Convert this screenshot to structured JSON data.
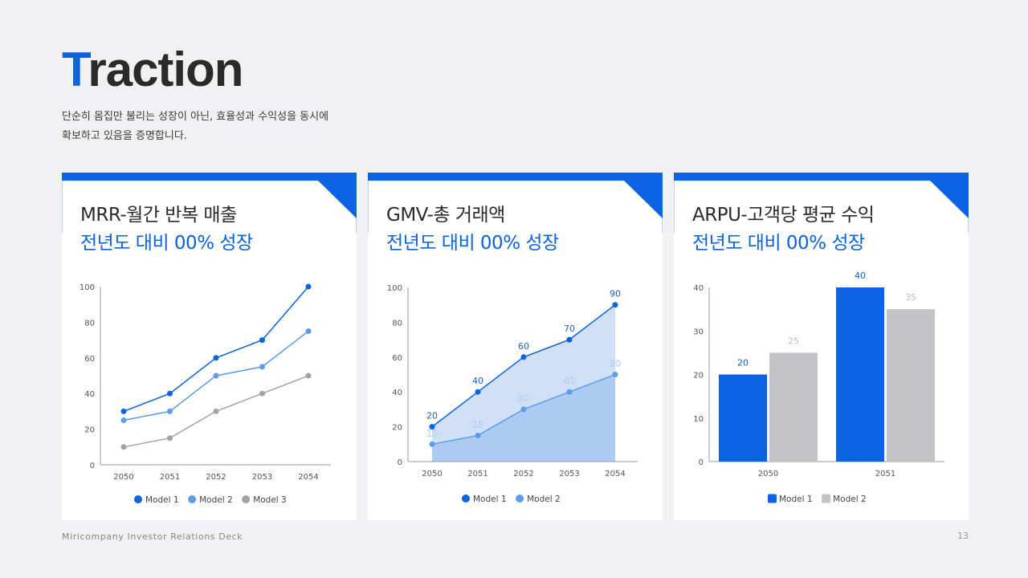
{
  "header": {
    "title_accent": "T",
    "title_rest": "raction",
    "subtitle_line1": "단순히 몸집만 불리는 성장이 아닌, 효율성과 수익성을 동시에",
    "subtitle_line2": "확보하고 있음을 증명합니다."
  },
  "cards": [
    {
      "title": "MRR-월간 반복 매출",
      "growth": "전년도 대비 00% 성장"
    },
    {
      "title": "GMV-총 거래액",
      "growth": "전년도 대비 00% 성장"
    },
    {
      "title": "ARPU-고객당 평균 수익",
      "growth": "전년도 대비 00% 성장"
    }
  ],
  "footer": {
    "deck_name": "Miricompany Investor Relations Deck",
    "page_number": "13"
  },
  "colors": {
    "accent": "#0a63e0",
    "model1": "#0a63e0",
    "model2": "#5b9cec",
    "model3": "#a3a3a3",
    "bar_gray": "#c4c4c6",
    "area_light": "#cfe0f7",
    "area_dark": "#adcaf2"
  },
  "chart_data": [
    {
      "type": "line",
      "title": "MRR-월간 반복 매출",
      "categories": [
        "2050",
        "2051",
        "2052",
        "2053",
        "2054"
      ],
      "series": [
        {
          "name": "Model 1",
          "values": [
            30,
            40,
            60,
            70,
            100
          ]
        },
        {
          "name": "Model 2",
          "values": [
            25,
            30,
            50,
            55,
            75
          ]
        },
        {
          "name": "Model 3",
          "values": [
            10,
            15,
            30,
            40,
            50
          ]
        }
      ],
      "yticks": [
        "0",
        "20",
        "40",
        "60",
        "80",
        "100"
      ],
      "ylim": [
        0,
        100
      ],
      "grid": false,
      "legend_position": "bottom"
    },
    {
      "type": "area",
      "title": "GMV-총 거래액",
      "categories": [
        "2050",
        "2051",
        "2052",
        "2053",
        "2054"
      ],
      "series": [
        {
          "name": "Model 1",
          "values": [
            20,
            40,
            60,
            70,
            90
          ]
        },
        {
          "name": "Model 2",
          "values": [
            10,
            15,
            30,
            40,
            50
          ]
        }
      ],
      "yticks": [
        "0",
        "20",
        "40",
        "60",
        "80",
        "100"
      ],
      "ylim": [
        0,
        100
      ],
      "data_labels": true,
      "grid": false,
      "legend_position": "bottom"
    },
    {
      "type": "bar",
      "title": "ARPU-고객당 평균 수익",
      "categories": [
        "2050",
        "2051"
      ],
      "series": [
        {
          "name": "Model 1",
          "values": [
            20,
            40
          ]
        },
        {
          "name": "Model 2",
          "values": [
            25,
            35
          ]
        }
      ],
      "yticks": [
        "0",
        "10",
        "20",
        "30",
        "40"
      ],
      "ylim": [
        0,
        40
      ],
      "data_labels": true,
      "grid": false,
      "legend_position": "bottom"
    }
  ]
}
